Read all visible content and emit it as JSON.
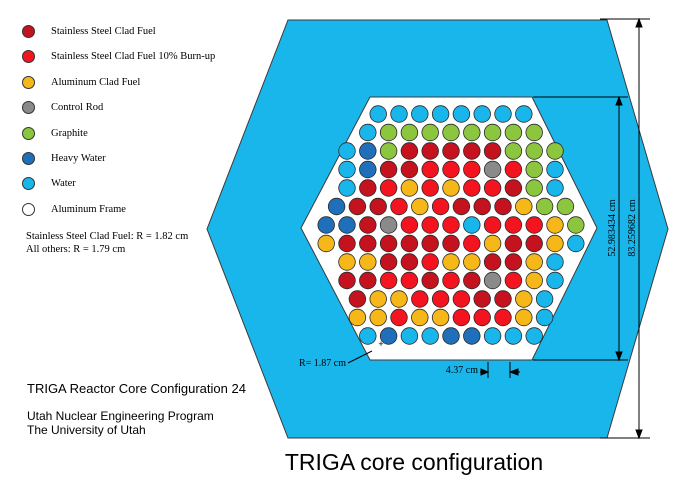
{
  "legend": [
    {
      "label": "Stainless Steel Clad Fuel",
      "color": "#c4121e"
    },
    {
      "label": "Stainless Steel Clad Fuel 10% Burn-up",
      "color": "#f31420"
    },
    {
      "label": "Aluminum Clad Fuel",
      "color": "#f6b719"
    },
    {
      "label": "Control Rod",
      "color": "#8a8a8a"
    },
    {
      "label": "Graphite",
      "color": "#8cc63f"
    },
    {
      "label": "Heavy Water",
      "color": "#1f6fba"
    },
    {
      "label": "Water",
      "color": "#19b6ec"
    },
    {
      "label": "Aluminum Frame",
      "color": "#ffffff"
    }
  ],
  "radius_notes": {
    "stainless": "Stainless Steel Clad Fuel: R = 1.82 cm",
    "others": "All others: R = 1.79 cm"
  },
  "title": "TRIGA Reactor Core Configuration 24",
  "program": "Utah Nuclear Engineering Program",
  "university": "The University of Utah",
  "caption": "TRIGA core configuration",
  "dimensions": {
    "outer_height": "83.259682 cm",
    "inner_height": "52.983434 cm",
    "pitch": "4.37 cm",
    "cell_radius": "R= 1.87 cm",
    "cell_marker": "+"
  },
  "colors": {
    "outer_hexagon": "#19b6ec",
    "inner_frame": "#ffffff",
    "dimension_line": "#000000"
  },
  "core_key": {
    "S": "Stainless Steel Clad Fuel",
    "B": "Stainless Steel Clad Fuel 10% Burn-up",
    "A": "Aluminum Clad Fuel",
    "C": "Control Rod",
    "G": "Graphite",
    "H": "Heavy Water",
    "W": "Water"
  },
  "core_rows": [
    "WWWWWWWW",
    "WGGGGGGGG",
    "WHGSSSSSGGG",
    "WHSSBBBCBGW",
    "WSBABABBSGW",
    "HSSBABSSSAGG",
    "HHSCBBBWBBBAG",
    "ASSSSSSBASSAW",
    "AASSBAASSAW",
    "SSBBSBSCBAW",
    "SAABBBSSAW",
    "AABAABBBAW",
    "WHWWHHWWW"
  ]
}
